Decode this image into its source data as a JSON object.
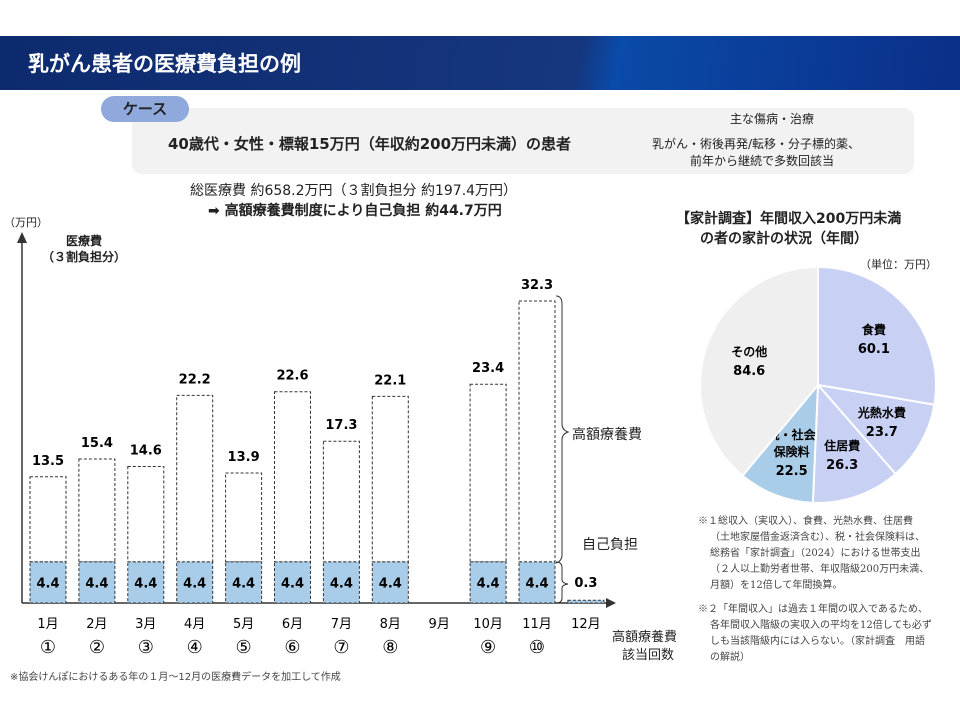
{
  "header": {
    "title": "乳がん患者の医療費負担の例"
  },
  "case": {
    "tag": "ケース",
    "patient": "40歳代・女性・標報15万円（年収約200万円未満）の患者",
    "diagnosis_label": "主な傷病・治療",
    "diagnosis_line1": "乳がん・術後再発/転移・分子標的薬、",
    "diagnosis_line2": "前年から継続で多数回該当"
  },
  "summary": {
    "line1": "総医療費 約658.2万円（３割負担分 約197.4万円）",
    "line2": "➡ 高額療養費制度により自己負担 約44.7万円"
  },
  "footnote": "※協会けんぽにおけるある年の１月～12月の医療費データを加工して作成",
  "chart_data": [
    {
      "type": "bar",
      "title": "",
      "ylabel": "医療費（３割負担分）",
      "yunit": "（万円）",
      "ylabel_line1": "医療費",
      "ylabel_line2": "（３割負担分）",
      "categories": [
        "1月",
        "2月",
        "3月",
        "4月",
        "5月",
        "6月",
        "7月",
        "8月",
        "9月",
        "10月",
        "11月",
        "12月"
      ],
      "circled": [
        "①",
        "②",
        "③",
        "④",
        "⑤",
        "⑥",
        "⑦",
        "⑧",
        "",
        "⑨",
        "⑩",
        ""
      ],
      "totals": [
        13.5,
        15.4,
        14.6,
        22.2,
        13.9,
        22.6,
        17.3,
        22.1,
        null,
        23.4,
        32.3,
        0.3
      ],
      "self_pay": [
        4.4,
        4.4,
        4.4,
        4.4,
        4.4,
        4.4,
        4.4,
        4.4,
        null,
        4.4,
        4.4,
        0.3
      ],
      "series_labels": {
        "kogaku": "高額療養費",
        "self": "自己負担"
      },
      "count_label_line1": "高額療養費",
      "count_label_line2": "該当回数",
      "colors": {
        "self": "#a9cde8"
      }
    },
    {
      "type": "pie",
      "title_line1": "【家計調査】年間収入200万円未満",
      "title_line2": "の者の家計の状況（年間）",
      "unit": "（単位：万円）",
      "slices": [
        {
          "label": "食費",
          "value": 60.1,
          "color": "#c8d0f4"
        },
        {
          "label": "光熱水費",
          "value": 23.7,
          "color": "#c8d0f4"
        },
        {
          "label": "住居費",
          "value": 26.3,
          "color": "#c8d0f4"
        },
        {
          "label": "税・社会保険料",
          "label1": "税・社会",
          "label2": "保険料",
          "value": 22.5,
          "color": "#a9cde8"
        },
        {
          "label": "その他",
          "value": 84.6,
          "color": "#efefef"
        }
      ]
    }
  ],
  "notes": {
    "n1": [
      "※１総収入（実収入）、食費、光熱水費、住居費",
      "（土地家屋借金返済含む）、税・社会保険料は、",
      "総務省「家計調査」（2024）における世帯支出",
      "（２人以上勤労者世帯、年収階級200万円未満、",
      "月額）を12倍して年間換算。"
    ],
    "n2": [
      "※２「年間収入」は過去１年間の収入であるため、",
      "各年間収入階級の実収入の平均を12倍しても必ず",
      "しも当該階級内には入らない。（家計調査　用語",
      "の解説）"
    ]
  }
}
